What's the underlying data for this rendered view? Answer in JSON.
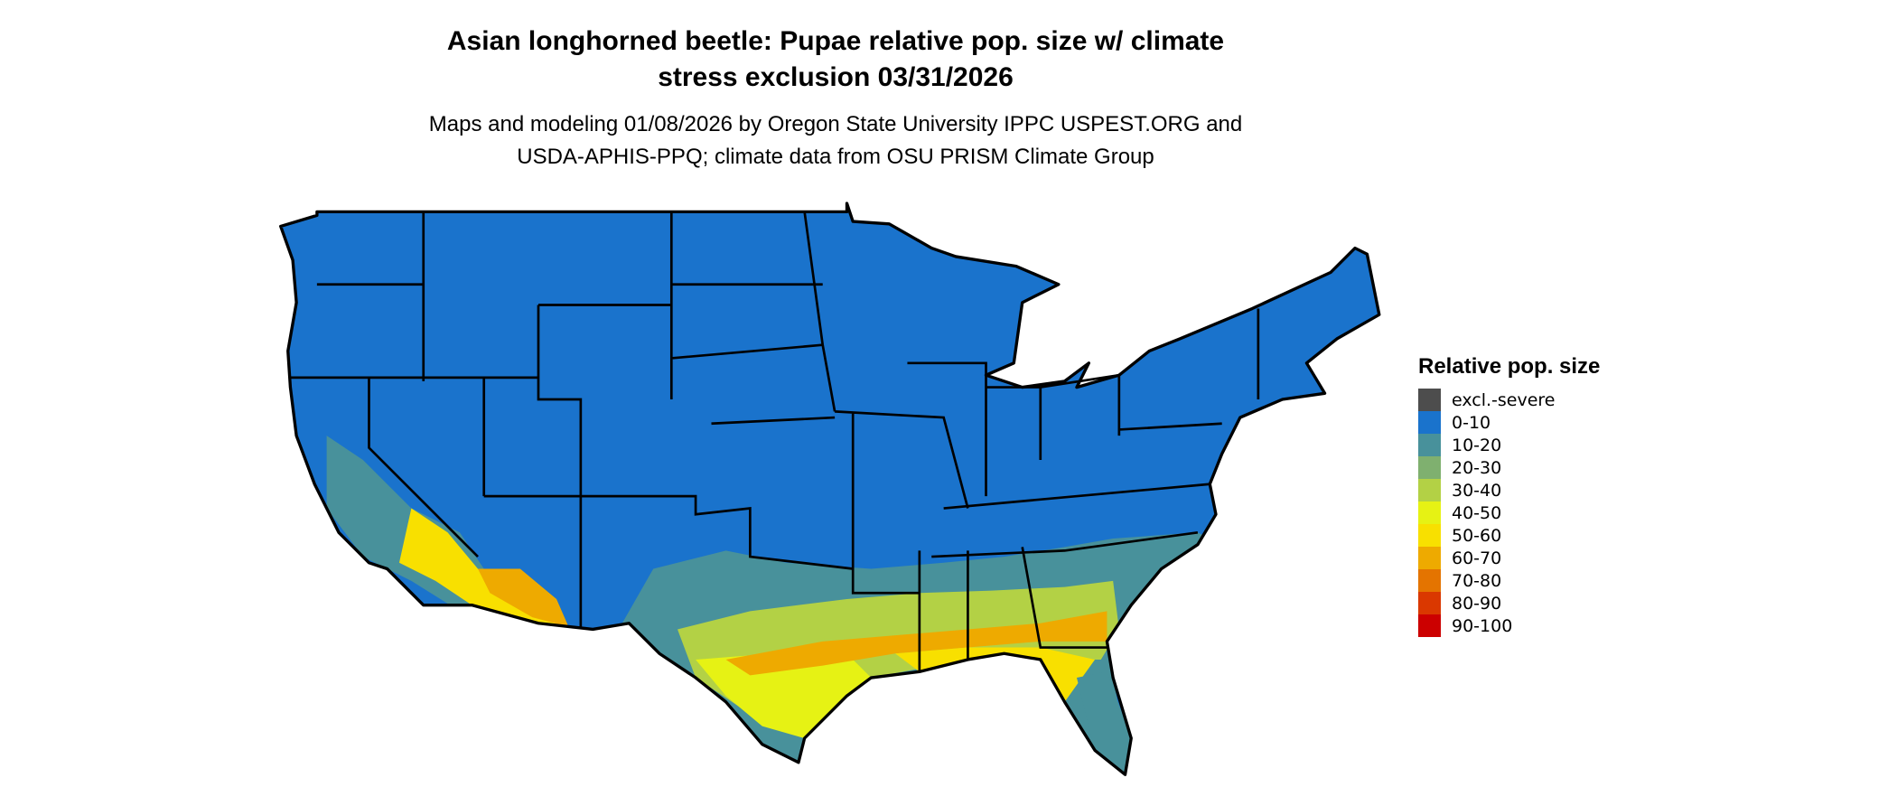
{
  "title": {
    "line1": "Asian longhorned beetle: Pupae relative pop. size w/ climate",
    "line2": "stress exclusion 03/31/2026"
  },
  "subtitle": {
    "line1": "Maps and modeling 01/08/2026 by Oregon State University IPPC USPEST.ORG and",
    "line2": "USDA-APHIS-PPQ; climate data from OSU PRISM Climate Group"
  },
  "legend": {
    "title": "Relative pop. size",
    "items": [
      {
        "label": "excl.-severe",
        "color": "#4d4d4d"
      },
      {
        "label": "0-10",
        "color": "#1a73cc"
      },
      {
        "label": "10-20",
        "color": "#48919b"
      },
      {
        "label": "20-30",
        "color": "#7fb06f"
      },
      {
        "label": "30-40",
        "color": "#b3d145"
      },
      {
        "label": "40-50",
        "color": "#e6f214"
      },
      {
        "label": "50-60",
        "color": "#f8e000"
      },
      {
        "label": "60-70",
        "color": "#eeaa00"
      },
      {
        "label": "70-80",
        "color": "#e47400"
      },
      {
        "label": "80-90",
        "color": "#da3800"
      },
      {
        "label": "90-100",
        "color": "#cc0000"
      }
    ]
  }
}
